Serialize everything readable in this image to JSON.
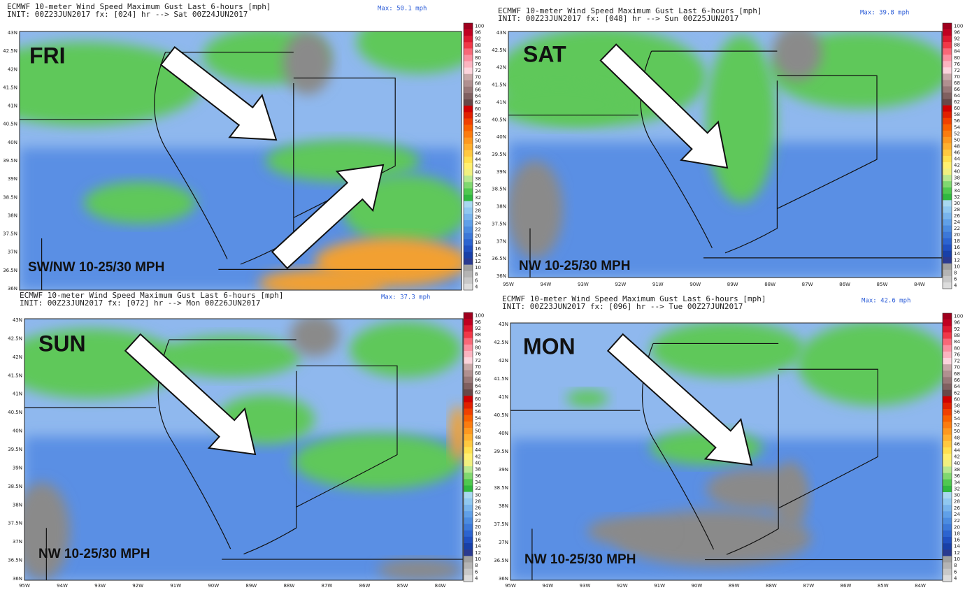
{
  "panels": [
    {
      "header_line1": "ECMWF 10-meter Wind Speed Maximum Gust Last 6-hours [mph]",
      "header_line2": "INIT: 00Z23JUN2017 fx: [024] hr --> Sat 00Z24JUN2017",
      "max": "Max: 50.1 mph",
      "day": "FRI",
      "wind": "SW/NW 10-25/30 MPH",
      "lon_axis": false
    },
    {
      "header_line1": "ECMWF 10-meter Wind Speed Maximum Gust Last 6-hours [mph]",
      "header_line2": "INIT: 00Z23JUN2017 fx: [048] hr --> Sun 00Z25JUN2017",
      "max": "Max: 39.8 mph",
      "day": "SAT",
      "wind": "NW 10-25/30 MPH",
      "lon_axis": true
    },
    {
      "header_line1": "ECMWF 10-meter Wind Speed Maximum Gust Last 6-hours [mph]",
      "header_line2": "INIT: 00Z23JUN2017 fx: [072] hr --> Mon 00Z26JUN2017",
      "max": "Max: 37.3 mph",
      "day": "SUN",
      "wind": "NW 10-25/30 MPH",
      "lon_axis": true
    },
    {
      "header_line1": "ECMWF 10-meter Wind Speed Maximum Gust Last 6-hours [mph]",
      "header_line2": "INIT: 00Z23JUN2017 fx: [096] hr --> Tue 00Z27JUN2017",
      "max": "Max: 42.6 mph",
      "day": "MON",
      "wind": "NW 10-25/30 MPH",
      "lon_axis": true
    }
  ],
  "lat_labels": [
    "43N",
    "42.5N",
    "42N",
    "41.5N",
    "41N",
    "40.5N",
    "40N",
    "39.5N",
    "39N",
    "38.5N",
    "38N",
    "37.5N",
    "37N",
    "36.5N",
    "36N"
  ],
  "lon_labels": [
    "95W",
    "94W",
    "93W",
    "92W",
    "91W",
    "90W",
    "89W",
    "88W",
    "87W",
    "86W",
    "85W",
    "84W"
  ],
  "colorbar": {
    "ticks": [
      100,
      96,
      92,
      88,
      84,
      80,
      76,
      72,
      70,
      68,
      66,
      64,
      62,
      60,
      58,
      56,
      54,
      52,
      50,
      48,
      46,
      44,
      42,
      40,
      38,
      36,
      34,
      32,
      30,
      28,
      26,
      24,
      22,
      20,
      18,
      16,
      14,
      12,
      10,
      8,
      6,
      4
    ],
    "colors": [
      "#a0001e",
      "#c00020",
      "#dc1830",
      "#f03848",
      "#f86878",
      "#fa90a0",
      "#fbb4c0",
      "#fcd4dc",
      "#c8a8a8",
      "#b09090",
      "#987878",
      "#806060",
      "#684848",
      "#d00000",
      "#e02000",
      "#f04000",
      "#f86000",
      "#fb7c10",
      "#fd9820",
      "#ffb030",
      "#ffc840",
      "#ffe050",
      "#fff070",
      "#f0f080",
      "#b8e890",
      "#80d870",
      "#50c850",
      "#30b840",
      "#a8d8f0",
      "#90c8f0",
      "#78b4ec",
      "#60a0e8",
      "#4c8ce0",
      "#3c78d8",
      "#2c64d0",
      "#2050c0",
      "#1840a8",
      "#2a3a90",
      "#a0a0a0",
      "#b4b4b4",
      "#c8c8c8",
      "#dcdcdc"
    ]
  }
}
